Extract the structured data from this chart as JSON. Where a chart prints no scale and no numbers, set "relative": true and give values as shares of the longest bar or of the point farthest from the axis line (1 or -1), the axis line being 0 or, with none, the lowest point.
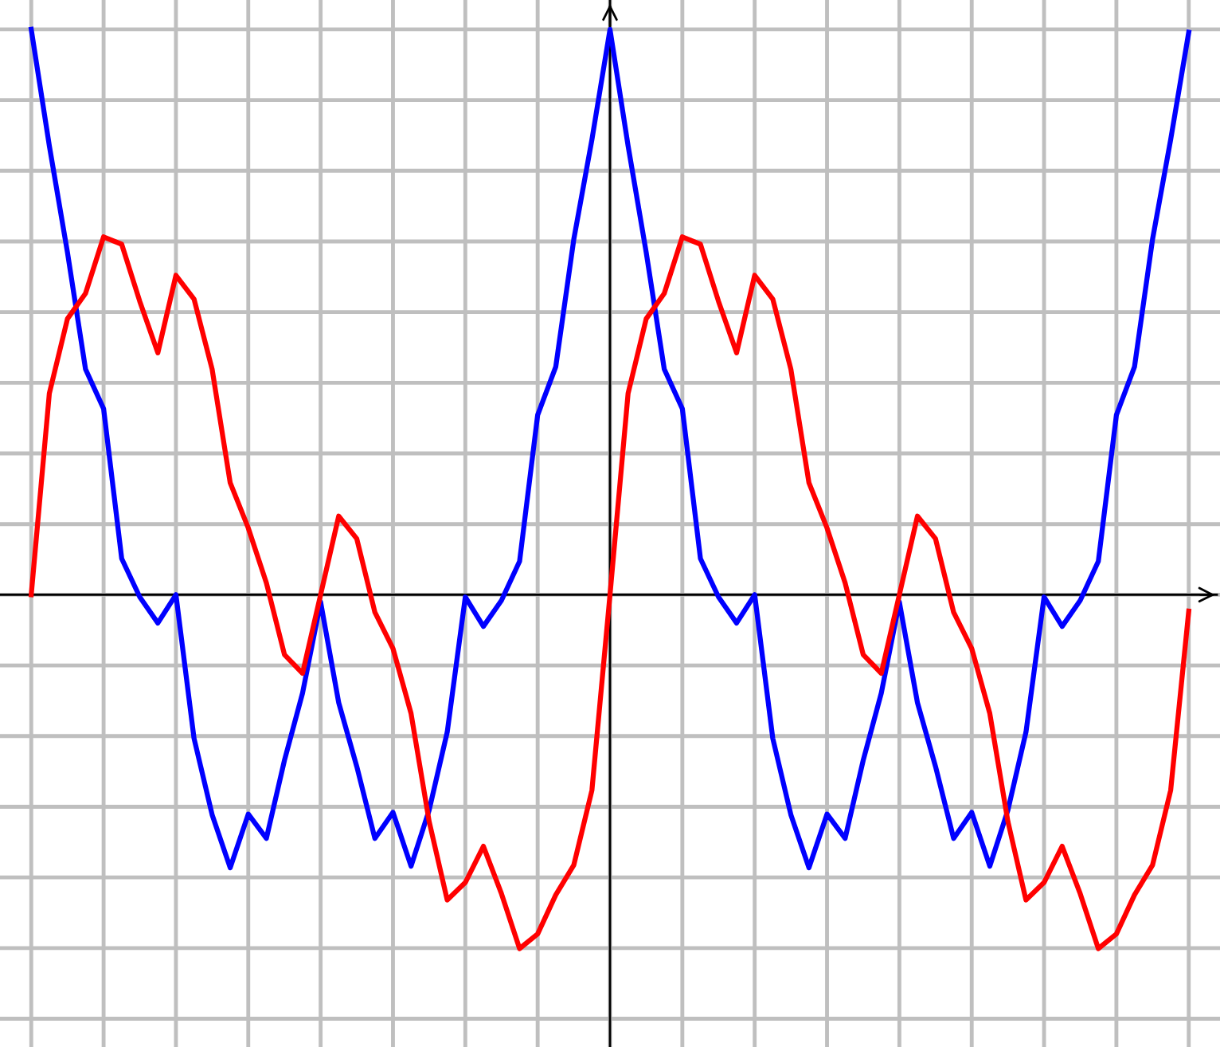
{
  "chart_data": {
    "type": "line",
    "relative": true,
    "grid": true,
    "marker": "none",
    "line_style": "solid",
    "categories": [
      null,
      null,
      null,
      null,
      null,
      null,
      null,
      null,
      null,
      null,
      null,
      null,
      null,
      null,
      null,
      null,
      null,
      null,
      null,
      null,
      null,
      null,
      null,
      null,
      null,
      null,
      null,
      null,
      null,
      null,
      null,
      null,
      null,
      null,
      null,
      null,
      null,
      null,
      null,
      null,
      null,
      null,
      null,
      null,
      null,
      null,
      null,
      null,
      null,
      null,
      null,
      null,
      null,
      null,
      null,
      null,
      null,
      null,
      null,
      null,
      null,
      null,
      null,
      null,
      null
    ],
    "series": [
      {
        "color": "#0000ff",
        "values": [
          1.0,
          0.794,
          0.606,
          0.399,
          0.329,
          0.064,
          -0.004,
          -0.05,
          0.0,
          -0.254,
          -0.389,
          -0.483,
          -0.388,
          -0.431,
          -0.293,
          -0.174,
          -0.013,
          -0.191,
          -0.304,
          -0.431,
          -0.385,
          -0.48,
          -0.381,
          -0.243,
          -0.004,
          -0.056,
          -0.01,
          0.059,
          0.318,
          0.403,
          0.629,
          0.805,
          1.0,
          0.794,
          0.606,
          0.399,
          0.329,
          0.064,
          -0.004,
          -0.05,
          0.0,
          -0.254,
          -0.389,
          -0.483,
          -0.388,
          -0.431,
          -0.293,
          -0.174,
          -0.013,
          -0.191,
          -0.304,
          -0.431,
          -0.385,
          -0.48,
          -0.381,
          -0.243,
          -0.004,
          -0.056,
          -0.01,
          0.059,
          0.318,
          0.403,
          0.629,
          0.805,
          0.995
        ]
      },
      {
        "color": "#ff0000",
        "values": [
          0.0,
          0.356,
          0.488,
          0.533,
          0.633,
          0.62,
          0.519,
          0.428,
          0.565,
          0.523,
          0.399,
          0.198,
          0.118,
          0.021,
          -0.106,
          -0.139,
          0.0,
          0.139,
          0.099,
          -0.031,
          -0.095,
          -0.21,
          -0.401,
          -0.54,
          -0.509,
          -0.445,
          -0.529,
          -0.626,
          -0.6,
          -0.531,
          -0.478,
          -0.346,
          0.0,
          0.356,
          0.488,
          0.533,
          0.633,
          0.62,
          0.519,
          0.428,
          0.565,
          0.523,
          0.399,
          0.198,
          0.118,
          0.021,
          -0.106,
          -0.139,
          0.0,
          0.139,
          0.099,
          -0.031,
          -0.095,
          -0.21,
          -0.401,
          -0.54,
          -0.509,
          -0.445,
          -0.529,
          -0.626,
          -0.6,
          -0.531,
          -0.478,
          -0.346,
          -0.029
        ]
      }
    ]
  }
}
